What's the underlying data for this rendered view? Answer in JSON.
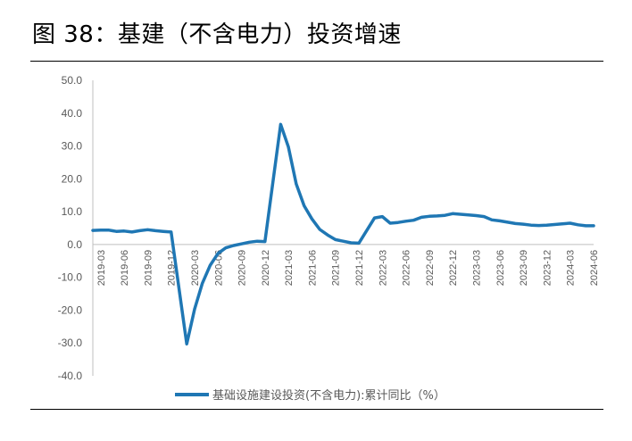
{
  "figure": {
    "title": "图 38：基建（不含电力）投资增速"
  },
  "chart_data": {
    "type": "line",
    "ylim": [
      -40,
      50
    ],
    "yticks": [
      "50.0",
      "40.0",
      "30.0",
      "20.0",
      "10.0",
      "0.0",
      "-10.0",
      "-20.0",
      "-30.0",
      "-40.0"
    ],
    "ytick_values": [
      50,
      40,
      30,
      20,
      10,
      0,
      -10,
      -20,
      -30,
      -40
    ],
    "xtick_labels": [
      "2019-03",
      "2019-06",
      "2019-09",
      "2019-12",
      "2020-03",
      "2020-06",
      "2020-09",
      "2020-12",
      "2021-03",
      "2021-06",
      "2021-09",
      "2021-12",
      "2022-03",
      "2022-06",
      "2022-09",
      "2022-12",
      "2023-03",
      "2023-06",
      "2023-09",
      "2023-12",
      "2024-03",
      "2024-06"
    ],
    "series": [
      {
        "name": "基础设施建设投资(不含电力):累计同比（%）",
        "color": "#1f77b4",
        "x": [
          "2019-02",
          "2019-03",
          "2019-04",
          "2019-05",
          "2019-06",
          "2019-07",
          "2019-08",
          "2019-09",
          "2019-10",
          "2019-11",
          "2019-12",
          "2020-02",
          "2020-03",
          "2020-04",
          "2020-05",
          "2020-06",
          "2020-07",
          "2020-08",
          "2020-09",
          "2020-10",
          "2020-11",
          "2020-12",
          "2021-02",
          "2021-03",
          "2021-04",
          "2021-05",
          "2021-06",
          "2021-07",
          "2021-08",
          "2021-09",
          "2021-10",
          "2021-11",
          "2021-12",
          "2022-02",
          "2022-03",
          "2022-04",
          "2022-05",
          "2022-06",
          "2022-07",
          "2022-08",
          "2022-09",
          "2022-10",
          "2022-11",
          "2022-12",
          "2023-02",
          "2023-03",
          "2023-04",
          "2023-05",
          "2023-06",
          "2023-07",
          "2023-08",
          "2023-09",
          "2023-10",
          "2023-11",
          "2023-12",
          "2024-02",
          "2024-03",
          "2024-04",
          "2024-05",
          "2024-06"
        ],
        "values": [
          4.3,
          4.4,
          4.4,
          4.0,
          4.1,
          3.8,
          4.2,
          4.5,
          4.2,
          4.0,
          3.8,
          -30.3,
          -19.7,
          -11.8,
          -6.3,
          -2.7,
          -1.0,
          -0.3,
          0.2,
          0.7,
          1.0,
          0.9,
          36.6,
          29.7,
          18.4,
          11.8,
          7.8,
          4.6,
          2.9,
          1.5,
          1.0,
          0.5,
          0.4,
          8.1,
          8.5,
          6.5,
          6.7,
          7.1,
          7.4,
          8.3,
          8.6,
          8.7,
          8.9,
          9.4,
          9.0,
          8.8,
          8.5,
          7.5,
          7.2,
          6.8,
          6.4,
          6.2,
          5.9,
          5.8,
          5.9,
          6.3,
          6.5,
          6.0,
          5.7,
          5.7
        ]
      }
    ],
    "legend_position": "bottom-center",
    "grid": false
  }
}
